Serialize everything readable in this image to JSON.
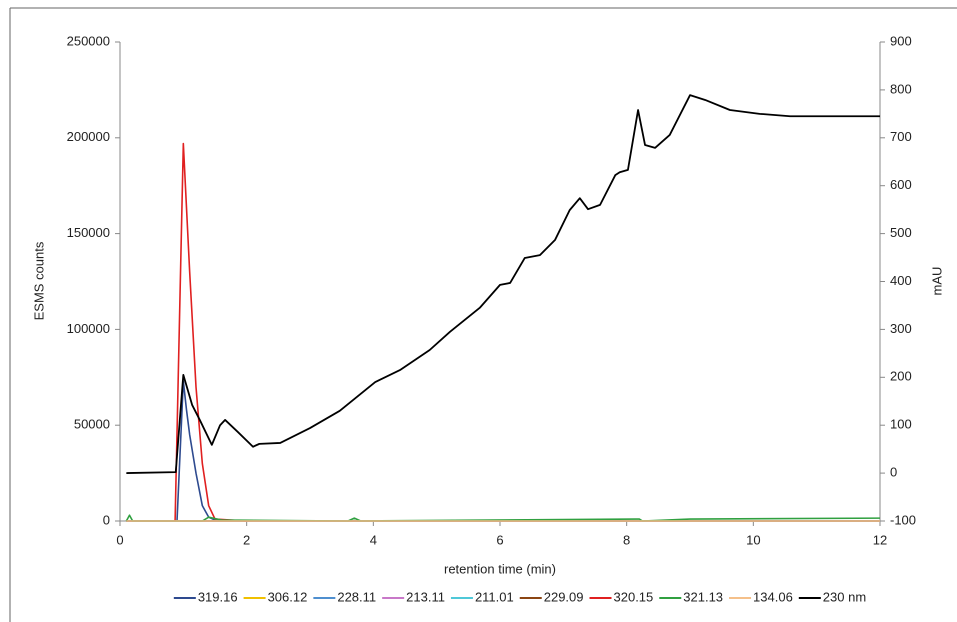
{
  "chart_data": {
    "type": "line",
    "x_label": "retention time (min)",
    "y_label": "ESMS counts",
    "y2_label": "mAU",
    "xlim": [
      0,
      12
    ],
    "xticks": [
      0,
      2,
      4,
      6,
      8,
      10,
      12
    ],
    "ylim": [
      0,
      250000
    ],
    "yticks": [
      0,
      50000,
      100000,
      150000,
      200000,
      250000
    ],
    "y2lim": [
      -100,
      900
    ],
    "y2ticks": [
      -100,
      0,
      100,
      200,
      300,
      400,
      500,
      600,
      700,
      800,
      900
    ],
    "legend": "bottom",
    "series": [
      {
        "name": "319.16",
        "color": "#2e4a8f",
        "x": [
          0.9,
          1.0,
          1.05,
          1.1,
          1.2,
          1.3,
          1.4,
          1.5,
          2.0
        ],
        "values": [
          0,
          73000,
          58000,
          45000,
          25000,
          8000,
          2000,
          500,
          0
        ]
      },
      {
        "name": "306.12",
        "color": "#f0c000",
        "x": [
          0.1,
          12
        ],
        "values": [
          0,
          0
        ]
      },
      {
        "name": "228.11",
        "color": "#4f8fcf",
        "x": [
          0.1,
          12
        ],
        "values": [
          0,
          0
        ]
      },
      {
        "name": "213.11",
        "color": "#c878c8",
        "x": [
          0.1,
          12
        ],
        "values": [
          0,
          0
        ]
      },
      {
        "name": "211.01",
        "color": "#4fc8d8",
        "x": [
          0.1,
          12
        ],
        "values": [
          0,
          0
        ]
      },
      {
        "name": "229.09",
        "color": "#8b4513",
        "x": [
          0.1,
          12
        ],
        "values": [
          0,
          0
        ]
      },
      {
        "name": "320.15",
        "color": "#e02020",
        "x": [
          0.87,
          1.0,
          1.1,
          1.2,
          1.3,
          1.4,
          1.5,
          2.0
        ],
        "values": [
          0,
          197000,
          130000,
          70000,
          30000,
          8000,
          1000,
          0
        ]
      },
      {
        "name": "321.13",
        "color": "#30a040",
        "x": [
          0.1,
          0.15,
          0.2,
          1.3,
          1.4,
          1.6,
          3.6,
          3.7,
          3.8,
          8.2,
          8.25,
          9,
          12
        ],
        "values": [
          0,
          3000,
          0,
          0,
          2000,
          500,
          0,
          1500,
          0,
          1000,
          0,
          1000,
          1500
        ]
      },
      {
        "name": "134.06",
        "color": "#f5c08a",
        "x": [
          0.1,
          12
        ],
        "values": [
          0,
          0
        ]
      },
      {
        "name": "230 nm",
        "color": "#000000",
        "axis": "y2",
        "x": [
          0.1,
          0.88,
          1.0,
          1.14,
          1.26,
          1.45,
          1.58,
          1.66,
          1.86,
          2.1,
          2.2,
          2.53,
          3.0,
          3.47,
          4.03,
          4.42,
          4.89,
          5.21,
          5.68,
          6.0,
          6.16,
          6.39,
          6.63,
          6.87,
          7.1,
          7.26,
          7.39,
          7.58,
          7.82,
          7.89,
          8.02,
          8.18,
          8.29,
          8.45,
          8.68,
          9.0,
          9.24,
          9.63,
          10.1,
          10.58,
          12
        ],
        "values": [
          0,
          2,
          205,
          142,
          111,
          59,
          100,
          111,
          86,
          55,
          61,
          63,
          94,
          130,
          190,
          215,
          257,
          295,
          345,
          393,
          397,
          449,
          455,
          487,
          549,
          574,
          551,
          560,
          622,
          628,
          633,
          758,
          685,
          679,
          706,
          789,
          779,
          758,
          750,
          745,
          745
        ]
      }
    ]
  }
}
